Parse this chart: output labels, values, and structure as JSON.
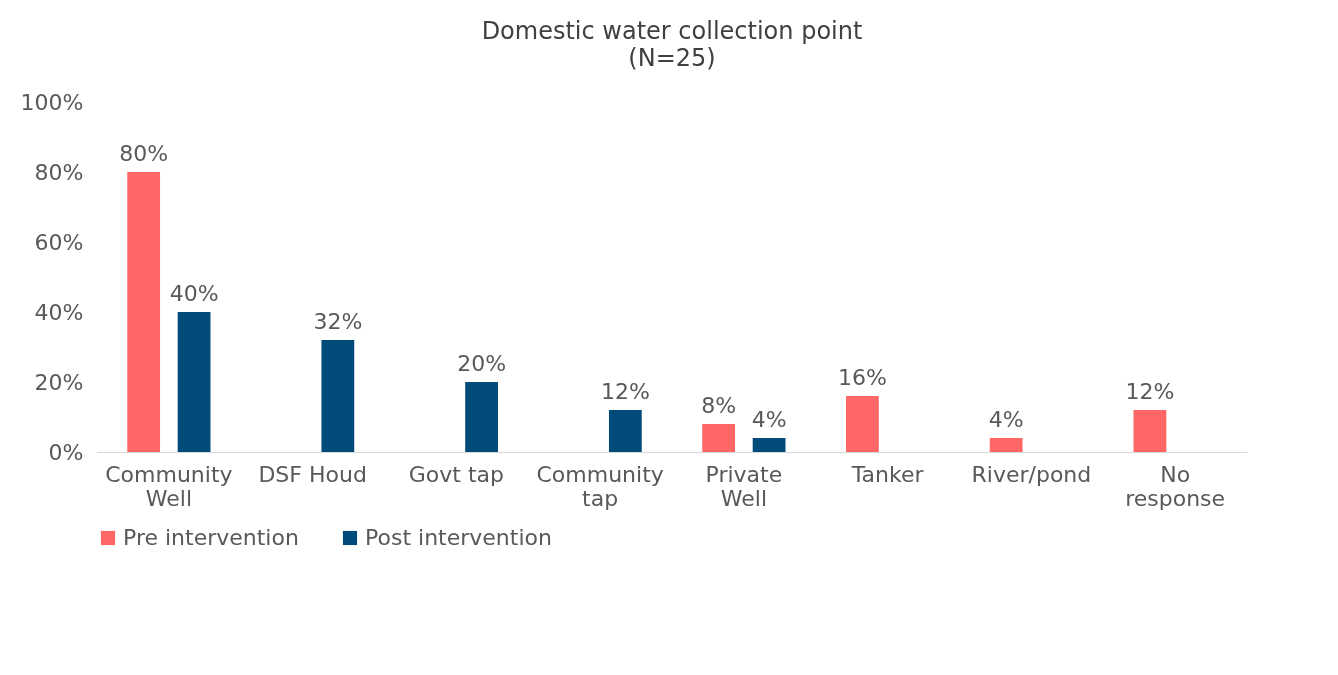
{
  "chart_data": {
    "type": "bar",
    "title": "Domestic water collection point",
    "subtitle": "(N=25)",
    "categories": [
      "Community Well",
      "DSF Houd",
      "Govt tap",
      "Community tap",
      "Private Well",
      "Tanker",
      "River/pond",
      "No response"
    ],
    "series": [
      {
        "name": "Pre intervention",
        "color": "#ff6666",
        "values": [
          80,
          null,
          null,
          null,
          8,
          16,
          4,
          12
        ],
        "value_labels": [
          "80%",
          null,
          null,
          null,
          "8%",
          "16%",
          "4%",
          "12%"
        ]
      },
      {
        "name": "Post intervention",
        "color": "#004b7a",
        "values": [
          40,
          32,
          20,
          12,
          4,
          null,
          null,
          null
        ],
        "value_labels": [
          "40%",
          "32%",
          "20%",
          "12%",
          "4%",
          null,
          null,
          null
        ]
      }
    ],
    "ylim": [
      0,
      100
    ],
    "yticks": [
      {
        "value": 0,
        "label": "0%"
      },
      {
        "value": 20,
        "label": "20%"
      },
      {
        "value": 40,
        "label": "40%"
      },
      {
        "value": 60,
        "label": "60%"
      },
      {
        "value": 80,
        "label": "80%"
      },
      {
        "value": 100,
        "label": "100%"
      }
    ],
    "grid": false,
    "legend": "bottom"
  }
}
